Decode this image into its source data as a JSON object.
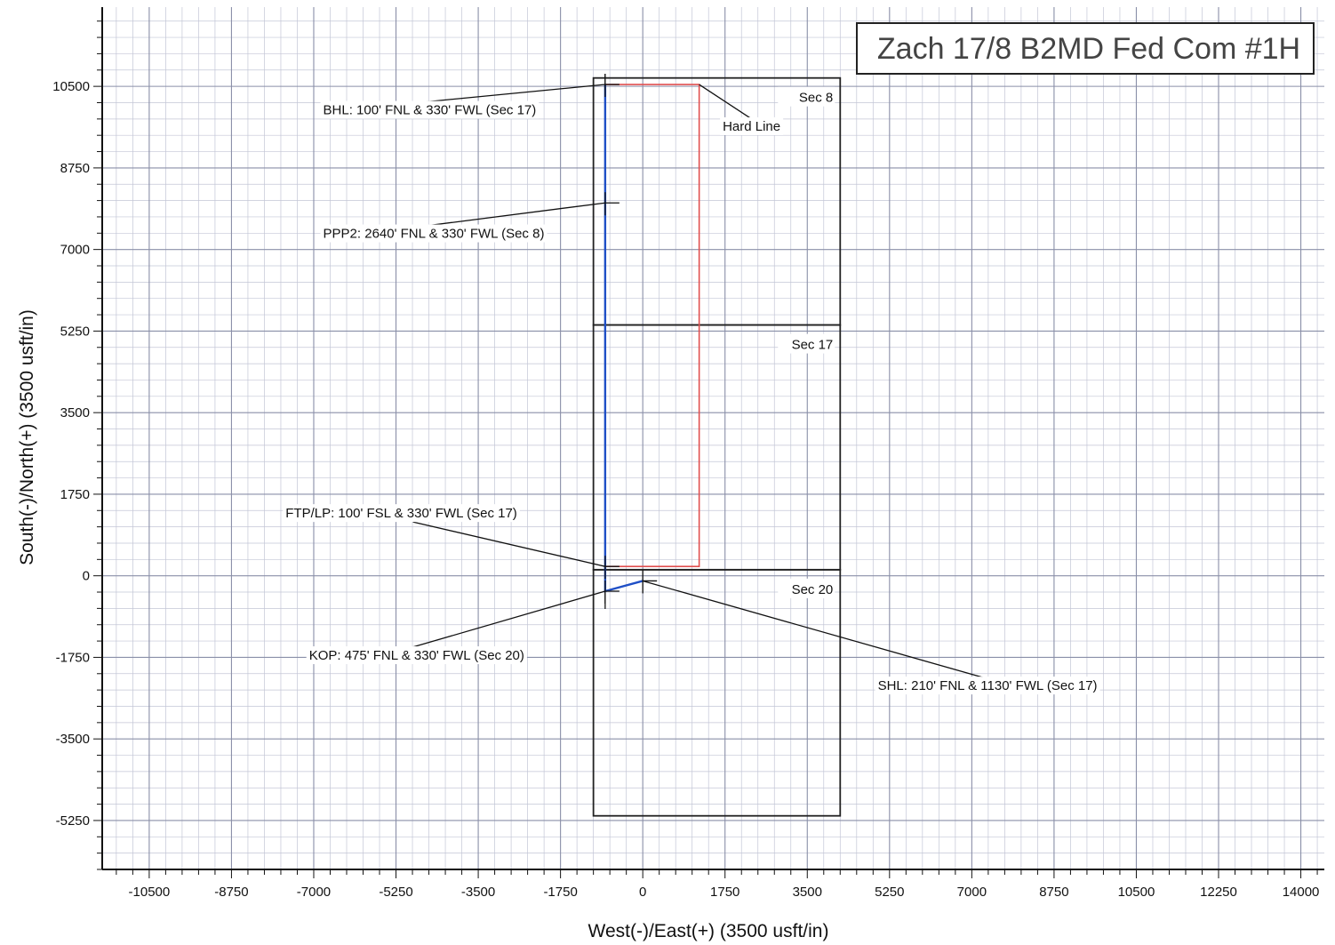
{
  "chart_data": {
    "type": "line",
    "title": "Zach 17/8 B2MD Fed Com #1H",
    "xlabel": "West(-)/East(+) (3500 usft/in)",
    "ylabel": "South(-)/North(+) (3500 usft/in)",
    "xlim": [
      -11500,
      14500
    ],
    "ylim": [
      -6300,
      12200
    ],
    "x_ticks": [
      -10500,
      -8750,
      -7000,
      -5250,
      -3500,
      -1750,
      0,
      1750,
      3500,
      5250,
      7000,
      8750,
      10500,
      12250,
      14000
    ],
    "y_ticks": [
      -5250,
      -3500,
      -1750,
      0,
      1750,
      3500,
      5250,
      7000,
      8750,
      10500
    ],
    "x_tick_labels": [
      "-10500",
      "-8750",
      "-7000",
      "-5250",
      "-3500",
      "-1750",
      "0",
      "1750",
      "3500",
      "5250",
      "7000",
      "8750",
      "10500",
      "12250",
      "14000"
    ],
    "y_tick_labels": [
      "-5250",
      "-3500",
      "-1750",
      "0",
      "1750",
      "3500",
      "5250",
      "7000",
      "8750",
      "10500"
    ],
    "grid": true,
    "series": [
      {
        "name": "",
        "color": "#1f4fc6",
        "points": [
          [
            0,
            -110
          ],
          [
            -800,
            -330
          ],
          [
            -800,
            250
          ],
          [
            -800,
            8000
          ],
          [
            -800,
            10540
          ]
        ]
      }
    ],
    "hard_line": {
      "label": "Hard Line",
      "color": "#e05050",
      "points": [
        [
          -800,
          10540
        ],
        [
          1200,
          10540
        ],
        [
          1200,
          200
        ],
        [
          -800,
          200
        ],
        [
          -800,
          10540
        ]
      ]
    },
    "sections": [
      {
        "label": "Sec 8",
        "x0": -1050,
        "x1": 4200,
        "y0": 5380,
        "y1": 10680
      },
      {
        "label": "Sec 17",
        "x0": -1050,
        "x1": 4200,
        "y0": 130,
        "y1": 5380
      },
      {
        "label": "Sec 20",
        "x0": -1050,
        "x1": 4200,
        "y0": -5150,
        "y1": 130
      }
    ],
    "annotations": [
      {
        "text": "BHL: 100' FNL & 330' FWL  (Sec 17)",
        "target": [
          -800,
          10540
        ],
        "label_at": [
          -6800,
          9900
        ],
        "anchor": "start"
      },
      {
        "text": "Hard Line",
        "target": [
          1200,
          10540
        ],
        "label_at": [
          1700,
          9550
        ],
        "anchor": "start"
      },
      {
        "text": "PPP2:  2640' FNL & 330' FWL (Sec 8)",
        "target": [
          -800,
          8000
        ],
        "label_at": [
          -6800,
          7250
        ],
        "anchor": "start"
      },
      {
        "text": "FTP/LP: 100' FSL & 330' FWL  (Sec 17)",
        "target": [
          -800,
          200
        ],
        "label_at": [
          -7600,
          1250
        ],
        "anchor": "start"
      },
      {
        "text": "KOP: 475' FNL & 330' FWL  (Sec 20)",
        "target": [
          -800,
          -330
        ],
        "label_at": [
          -7100,
          -1800
        ],
        "anchor": "start"
      },
      {
        "text": "SHL: 210' FNL & 1130' FWL (Sec 17)",
        "target": [
          0,
          -110
        ],
        "label_at": [
          5000,
          -2450
        ],
        "anchor": "start"
      }
    ]
  }
}
